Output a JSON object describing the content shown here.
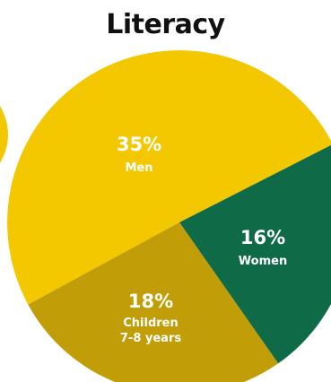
{
  "chart_data": {
    "type": "pie",
    "title": "Literacy",
    "slices": [
      {
        "percent_label": "35%",
        "label_lines": [
          "Men"
        ],
        "value": 35,
        "color": "#f3c800"
      },
      {
        "percent_label": "16%",
        "label_lines": [
          "Women"
        ],
        "value": 16,
        "color": "#0e6a47"
      },
      {
        "percent_label": "18%",
        "label_lines": [
          "Children",
          "7-8 years"
        ],
        "value": 18,
        "color": "#c19d07"
      }
    ],
    "partial_neighbor_color": "#f3c800"
  }
}
